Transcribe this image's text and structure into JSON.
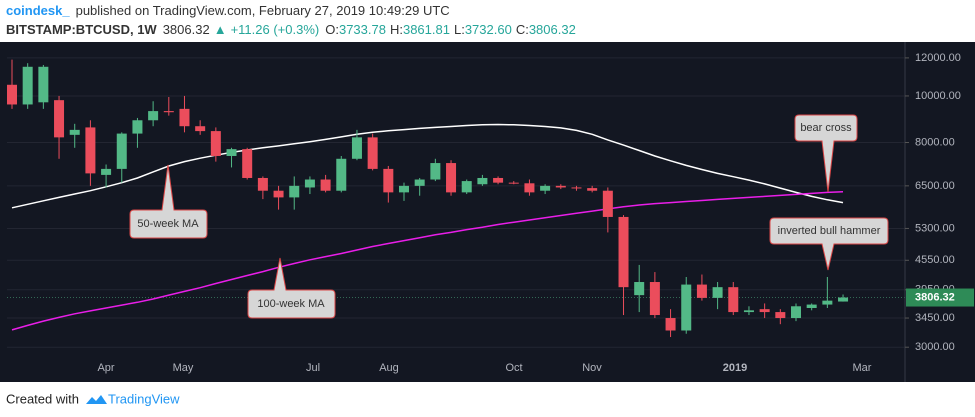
{
  "chart_data": {
    "type": "candlestick",
    "publisher": "coindesk_",
    "published": "published on TradingView.com, February 27, 2019 10:49:29 UTC",
    "symbol": "BITSTAMP:BTCUSD, 1W",
    "last_price": 3806.32,
    "change": "+11.26 (+0.3%)",
    "ohlc_header": [
      {
        "label": "O:",
        "value": "3733.78"
      },
      {
        "label": "H:",
        "value": "3861.81"
      },
      {
        "label": "L:",
        "value": "3732.60"
      },
      {
        "label": "C:",
        "value": "3806.32"
      }
    ],
    "footer": "Created with",
    "footer_brand": "TradingView",
    "up_color": "#53b987",
    "down_color": "#eb4d5c",
    "log_scale": true,
    "grid": true,
    "ylim": [
      2890,
      12950
    ],
    "yticks": [
      {
        "value": 3000,
        "label": "3000.00"
      },
      {
        "value": 3450,
        "label": "3450.00"
      },
      {
        "value": 3950,
        "label": "3950.00"
      },
      {
        "value": 4550,
        "label": "4550.00"
      },
      {
        "value": 5300,
        "label": "5300.00"
      },
      {
        "value": 6500,
        "label": "6500.00"
      },
      {
        "value": 8000,
        "label": "8000.00"
      },
      {
        "value": 10000,
        "label": "10000.00"
      },
      {
        "value": 12000,
        "label": "12000.00"
      }
    ],
    "xtick_labels": [
      "Apr",
      "May",
      "Jul",
      "Aug",
      "Oct",
      "Nov",
      "2019",
      "Mar"
    ],
    "open": [
      10550,
      9600,
      9700,
      9800,
      8300,
      8600,
      6850,
      7050,
      8350,
      8900,
      9300,
      9400,
      8650,
      8450,
      7500,
      7750,
      6750,
      6350,
      6150,
      6450,
      6700,
      6350,
      7400,
      8200,
      7050,
      6300,
      6500,
      6700,
      7250,
      6300,
      6550,
      6750,
      6600,
      6580,
      6350,
      6500,
      6450,
      6430,
      6350,
      5600,
      3850,
      4100,
      3450,
      3250,
      4050,
      3800,
      4000,
      3550,
      3600,
      3550,
      3450,
      3620,
      3680,
      3733.78
    ],
    "high": [
      11900,
      11700,
      11600,
      10000,
      8750,
      8900,
      7200,
      8400,
      9000,
      9750,
      9950,
      10000,
      8900,
      8600,
      7800,
      7800,
      6800,
      6500,
      6800,
      6800,
      6850,
      7500,
      8500,
      8350,
      7150,
      6600,
      6750,
      7400,
      7350,
      6700,
      6850,
      6800,
      6650,
      6700,
      6550,
      6550,
      6500,
      6500,
      6450,
      5650,
      4450,
      4300,
      3600,
      4200,
      4250,
      4100,
      4100,
      3650,
      3700,
      3600,
      3700,
      3700,
      4200,
      3861.81
    ],
    "low": [
      9400,
      9400,
      9400,
      7400,
      7800,
      6500,
      6450,
      6600,
      7800,
      8650,
      9100,
      8400,
      8300,
      7300,
      7100,
      6700,
      6100,
      5800,
      5800,
      6250,
      6300,
      6300,
      7350,
      7000,
      6000,
      6050,
      6200,
      6650,
      6200,
      6250,
      6500,
      6550,
      6550,
      6200,
      6250,
      6400,
      6350,
      6300,
      5200,
      3500,
      3550,
      3450,
      3150,
      3200,
      3750,
      3600,
      3500,
      3500,
      3450,
      3350,
      3400,
      3580,
      3620,
      3732.6
    ],
    "close": [
      9600,
      11500,
      11500,
      8200,
      8500,
      6900,
      7050,
      8350,
      8900,
      9300,
      9250,
      8650,
      8450,
      7500,
      7750,
      6750,
      6350,
      6150,
      6500,
      6700,
      6350,
      7400,
      8200,
      7050,
      6300,
      6500,
      6700,
      7250,
      6300,
      6650,
      6750,
      6600,
      6580,
      6300,
      6500,
      6450,
      6430,
      6350,
      5600,
      4000,
      4100,
      3500,
      3250,
      4050,
      3800,
      4000,
      3550,
      3580,
      3550,
      3450,
      3650,
      3680,
      3750,
      3806.32
    ],
    "ma_lines": [
      {
        "name": "50-week MA",
        "color": "#ffffff",
        "values": [
          5850,
          5950,
          6050,
          6150,
          6250,
          6350,
          6470,
          6600,
          6750,
          6950,
          7150,
          7300,
          7420,
          7530,
          7630,
          7720,
          7800,
          7870,
          7950,
          8030,
          8120,
          8220,
          8320,
          8400,
          8460,
          8510,
          8560,
          8600,
          8640,
          8680,
          8710,
          8720,
          8710,
          8680,
          8640,
          8580,
          8480,
          8320,
          8100,
          7900,
          7700,
          7500,
          7330,
          7170,
          7030,
          6900,
          6790,
          6680,
          6560,
          6430,
          6300,
          6180,
          6080,
          6000
        ]
      },
      {
        "name": "100-week MA",
        "color": "#e91ee9",
        "values": [
          3260,
          3330,
          3400,
          3460,
          3520,
          3570,
          3620,
          3670,
          3720,
          3780,
          3850,
          3920,
          3990,
          4070,
          4150,
          4230,
          4310,
          4400,
          4480,
          4560,
          4630,
          4700,
          4780,
          4860,
          4930,
          5000,
          5070,
          5140,
          5200,
          5270,
          5330,
          5400,
          5460,
          5520,
          5580,
          5640,
          5700,
          5760,
          5820,
          5880,
          5930,
          5970,
          6000,
          6030,
          6060,
          6090,
          6120,
          6150,
          6180,
          6210,
          6240,
          6270,
          6300,
          6320
        ]
      }
    ],
    "annotations": [
      "bear cross",
      "inverted bull hammer"
    ]
  }
}
